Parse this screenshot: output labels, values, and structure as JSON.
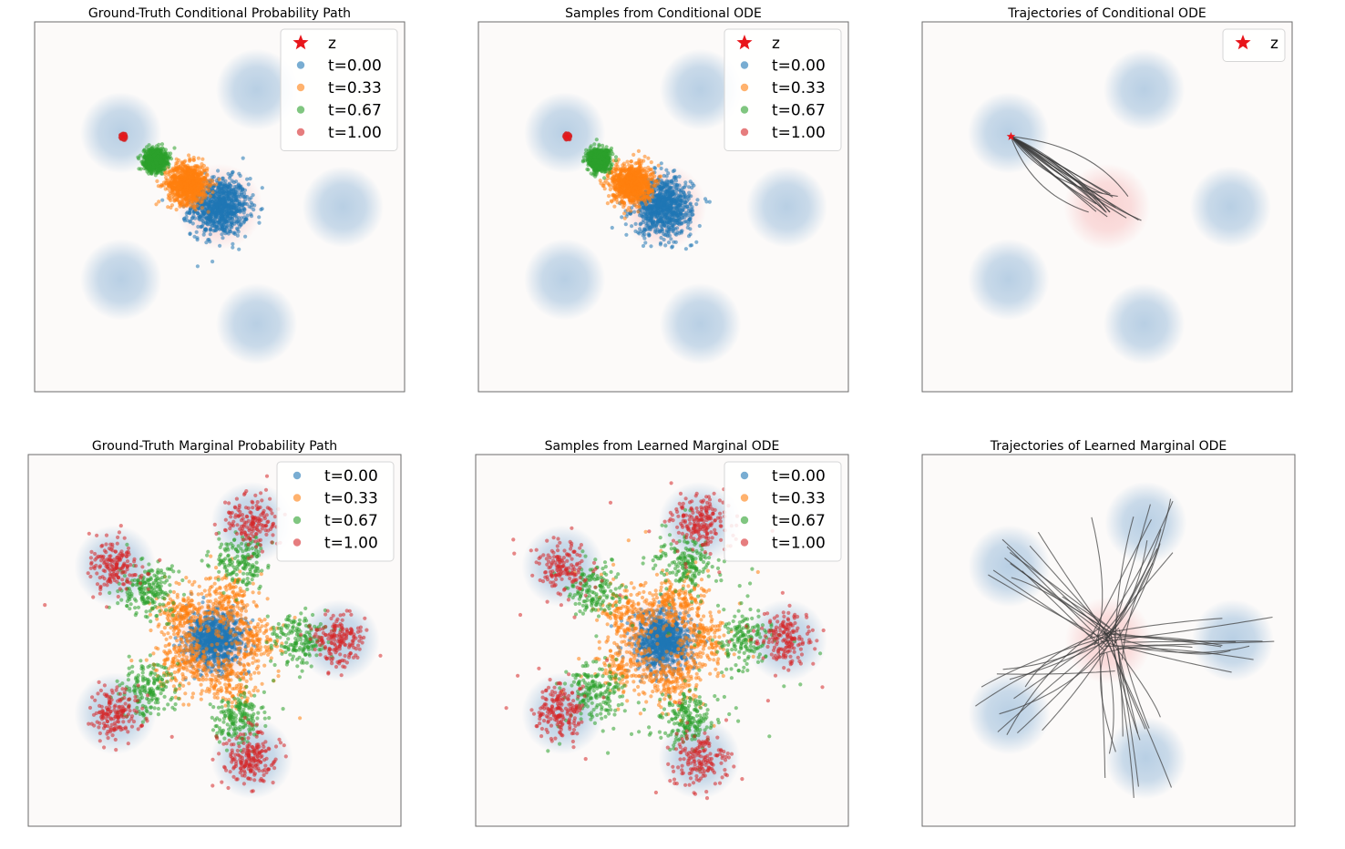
{
  "figure": {
    "colors": {
      "t0": "#1f77b4",
      "t1": "#ff7f0e",
      "t2": "#2ca02c",
      "t3": "#d62728",
      "star": "#e8151b",
      "traj": "#3a3a3a",
      "target_mode": "#b8cfe4",
      "source_mode": "#f8c8c8",
      "background": "#fcfaf9"
    }
  },
  "chart_data": [
    {
      "type": "scatter",
      "title": "Ground-Truth Conditional Probability Path",
      "xlim": [
        -15,
        15
      ],
      "ylim": [
        -15,
        15
      ],
      "legend": [
        "z",
        "t=0.00",
        "t=0.33",
        "t=0.67",
        "t=1.00"
      ],
      "legend_position": "top-right",
      "z": [
        -7.8,
        5.7
      ],
      "mode": "conditional",
      "series": [
        {
          "name": "t=0.00",
          "t": 0.0,
          "n": 900
        },
        {
          "name": "t=0.33",
          "t": 0.33,
          "n": 900
        },
        {
          "name": "t=0.67",
          "t": 0.67,
          "n": 900
        },
        {
          "name": "t=1.00",
          "t": 1.0,
          "n": 900
        }
      ]
    },
    {
      "type": "scatter",
      "title": "Samples from Conditional ODE",
      "xlim": [
        -15,
        15
      ],
      "ylim": [
        -15,
        15
      ],
      "legend": [
        "z",
        "t=0.00",
        "t=0.33",
        "t=0.67",
        "t=1.00"
      ],
      "legend_position": "top-right",
      "z": [
        -7.8,
        5.7
      ],
      "mode": "conditional",
      "series": [
        {
          "name": "t=0.00",
          "t": 0.0,
          "n": 900
        },
        {
          "name": "t=0.33",
          "t": 0.33,
          "n": 900
        },
        {
          "name": "t=0.67",
          "t": 0.67,
          "n": 900
        },
        {
          "name": "t=1.00",
          "t": 1.0,
          "n": 900
        }
      ]
    },
    {
      "type": "line",
      "title": "Trajectories of Conditional ODE",
      "xlim": [
        -15,
        15
      ],
      "ylim": [
        -15,
        15
      ],
      "legend": [
        "z"
      ],
      "legend_position": "top-right",
      "z": [
        -7.8,
        5.7
      ],
      "mode": "conditional-trajectories",
      "n_trajectories": 18
    },
    {
      "type": "scatter",
      "title": "Ground-Truth Marginal Probability Path",
      "xlim": [
        -15,
        15
      ],
      "ylim": [
        -15,
        15
      ],
      "legend": [
        "t=0.00",
        "t=0.33",
        "t=0.67",
        "t=1.00"
      ],
      "legend_position": "top-right",
      "mode": "marginal",
      "outliers": 0.01,
      "series": [
        {
          "name": "t=0.00",
          "t": 0.0,
          "n": 900
        },
        {
          "name": "t=0.33",
          "t": 0.33,
          "n": 900
        },
        {
          "name": "t=0.67",
          "t": 0.67,
          "n": 900
        },
        {
          "name": "t=1.00",
          "t": 1.0,
          "n": 900
        }
      ]
    },
    {
      "type": "scatter",
      "title": "Samples from Learned Marginal ODE",
      "xlim": [
        -15,
        15
      ],
      "ylim": [
        -15,
        15
      ],
      "legend": [
        "t=0.00",
        "t=0.33",
        "t=0.67",
        "t=1.00"
      ],
      "legend_position": "top-right",
      "mode": "marginal",
      "outliers": 0.07,
      "series": [
        {
          "name": "t=0.00",
          "t": 0.0,
          "n": 900
        },
        {
          "name": "t=0.33",
          "t": 0.33,
          "n": 900
        },
        {
          "name": "t=0.67",
          "t": 0.67,
          "n": 900
        },
        {
          "name": "t=1.00",
          "t": 1.0,
          "n": 900
        }
      ]
    },
    {
      "type": "line",
      "title": "Trajectories of Learned Marginal ODE",
      "xlim": [
        -15,
        15
      ],
      "ylim": [
        -15,
        15
      ],
      "legend": [],
      "mode": "marginal-trajectories",
      "n_trajectories": 60
    }
  ]
}
